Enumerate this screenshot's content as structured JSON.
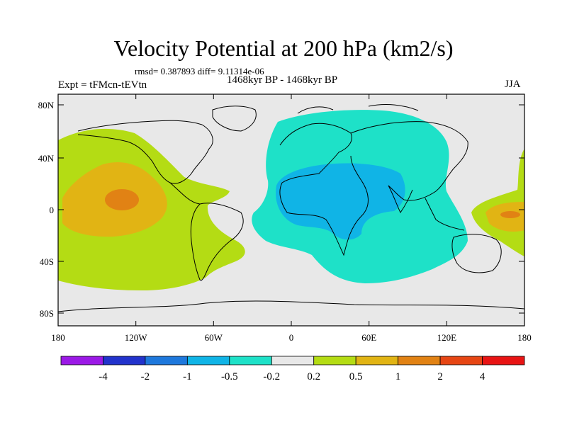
{
  "title": "Velocity Potential at 200 hPa (km2/s)",
  "stats": "rmsd= 0.387893  diff= 9.11314e-06",
  "expt": "Expt = tFMcn-tEVtn",
  "period": "1468kyr BP - 1468kyr BP",
  "season": "JJA",
  "lat_labels": [
    "80N",
    "40N",
    "0",
    "40S",
    "80S"
  ],
  "lon_labels": [
    "180",
    "120W",
    "60W",
    "0",
    "60E",
    "120E",
    "180"
  ],
  "colorbar": {
    "colors": [
      "#9b19e6",
      "#2233cc",
      "#1e78dc",
      "#10b4e6",
      "#1ee1c8",
      "#e8e8e8",
      "#b4dc14",
      "#e1b414",
      "#e18214",
      "#e64614",
      "#e81414"
    ],
    "labels": [
      "-4",
      "-2",
      "-1",
      "-0.5",
      "-0.2",
      "0.2",
      "0.5",
      "1",
      "2",
      "4"
    ]
  },
  "regions": {
    "pacific_positive": "#b4dc14",
    "pacific_core": "#e1b414",
    "pacific_max": "#e18214",
    "atlantic_africa_negative": "#1ee1c8",
    "africa_core": "#10b4e6",
    "background": "#e8e8e8"
  }
}
